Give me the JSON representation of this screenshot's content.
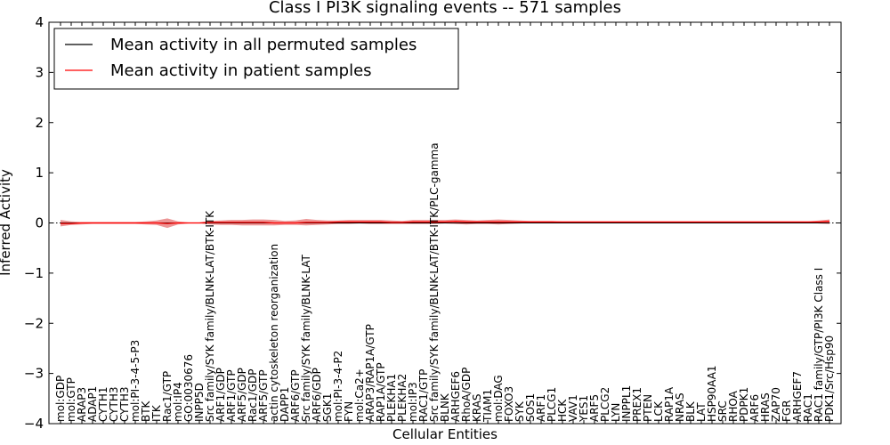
{
  "chart_data": {
    "type": "line",
    "title": "Class I PI3K signaling events -- 571 samples",
    "xlabel": "Cellular Entities",
    "ylabel": "Inferred Activity",
    "ylim": [
      -4,
      4
    ],
    "yticks": [
      4,
      3,
      2,
      1,
      0,
      -1,
      -2,
      -3,
      -4
    ],
    "ytick_labels": [
      "4",
      "3",
      "2",
      "1",
      "0",
      "−1",
      "−2",
      "−3",
      "−4"
    ],
    "grid": false,
    "legend_placement": "top-left",
    "categories": [
      "mol:GDP",
      "mol:GTP",
      "ARAP3",
      "ADAP1",
      "CYTH1",
      "CYTH3",
      "CYTH3",
      "mol:PI-3-4-5-P3",
      "BTK",
      "ITK",
      "Rac1/GTP",
      "mol:IP4",
      "GO:0030676",
      "INPP5D",
      "Src family/SYK family/BLNK-LAT/BTK-ITK",
      "ARF1/GDP",
      "ARF1/GTP",
      "ARF5/GDP",
      "Rac1/GDP",
      "ARF5/GTP",
      "actin cytoskeleton reorganization",
      "DAPP1",
      "ARF6/GTP",
      "Src family/SYK family/BLNK-LAT",
      "ARF6/GDP",
      "SGK1",
      "mol:PI-3-4-P2",
      "FYN",
      "mol:Ca2+",
      "ARAP3/RAP1A/GTP",
      "RAP1A/GTP",
      "PLEKHA1",
      "PLEKHA2",
      "mol:IP3",
      "RAC1/GTP",
      "Src family/SYK family/BLNK-LAT/BTK-ITK/PLC-gamma",
      "BLNK",
      "ARHGEF6",
      "RhoA/GDP",
      "KRAS",
      "TIAM1",
      "mol:DAG",
      "FOXO3",
      "SYK",
      "SOS1",
      "ARF1",
      "PLCG1",
      "HCK",
      "VAV1",
      "YES1",
      "ARF5",
      "PLCG2",
      "LYN",
      "INPPL1",
      "PREX1",
      "PTEN",
      "LCK",
      "RAP1A",
      "NRAS",
      "BLK",
      "LAT",
      "HSP90AA1",
      "SRC",
      "RHOA",
      "PDPK1",
      "ARF6",
      "HRAS",
      "ZAP70",
      "FGR",
      "ARHGEF7",
      "RAC1",
      "RAC1 family/GTP/PI3K Class I",
      "PDK1/Src/Hsp90"
    ],
    "series": [
      {
        "name": "Mean activity in all permuted samples",
        "color": "#000000",
        "values": [
          0,
          0,
          0,
          0,
          0,
          0,
          0,
          0,
          0,
          0,
          0,
          0,
          0,
          0,
          0,
          0,
          0,
          0,
          0,
          0,
          0,
          0,
          0,
          0,
          0,
          0,
          0,
          0,
          0,
          0,
          0,
          0,
          0,
          0,
          0,
          0,
          0,
          0,
          0,
          0,
          0,
          0,
          0,
          0,
          0,
          0,
          0,
          0,
          0,
          0,
          0,
          0,
          0,
          0,
          0,
          0,
          0,
          0,
          0,
          0,
          0,
          0,
          0,
          0,
          0,
          0,
          0,
          0,
          0,
          0,
          0,
          0,
          0
        ]
      },
      {
        "name": "Mean activity in patient samples",
        "color": "#ff0000",
        "values": [
          -0.01,
          -0.01,
          0,
          0,
          0,
          0,
          0,
          0,
          0,
          0,
          -0.01,
          0,
          0,
          0,
          0.01,
          0.01,
          0.01,
          0.01,
          0.01,
          0.01,
          0,
          0,
          0,
          0.01,
          0.01,
          0.01,
          0.02,
          0.02,
          0.02,
          0.02,
          0.02,
          0.01,
          0.01,
          0.02,
          0.02,
          0.02,
          0.02,
          0.03,
          0.02,
          0.02,
          0.02,
          0.02,
          0.02,
          0.02,
          0.02,
          0.02,
          0.02,
          0.02,
          0.02,
          0.02,
          0.02,
          0.02,
          0.02,
          0.02,
          0.02,
          0.02,
          0.02,
          0.02,
          0.02,
          0.02,
          0.02,
          0.02,
          0.02,
          0.02,
          0.02,
          0.02,
          0.02,
          0.02,
          0.02,
          0.02,
          0.02,
          0.02,
          0.03
        ]
      }
    ],
    "band": {
      "color": "#e57373",
      "upper": [
        0.06,
        0.03,
        0.02,
        0.02,
        0.02,
        0.02,
        0.02,
        0.02,
        0.03,
        0.05,
        0.09,
        0.03,
        0.01,
        0.01,
        0.04,
        0.05,
        0.06,
        0.06,
        0.07,
        0.07,
        0.06,
        0.04,
        0.05,
        0.08,
        0.06,
        0.05,
        0.05,
        0.06,
        0.06,
        0.06,
        0.06,
        0.05,
        0.04,
        0.06,
        0.06,
        0.06,
        0.06,
        0.07,
        0.06,
        0.05,
        0.06,
        0.07,
        0.06,
        0.05,
        0.04,
        0.04,
        0.04,
        0.03,
        0.03,
        0.03,
        0.03,
        0.03,
        0.03,
        0.03,
        0.03,
        0.03,
        0.03,
        0.03,
        0.03,
        0.03,
        0.03,
        0.03,
        0.03,
        0.03,
        0.03,
        0.03,
        0.03,
        0.03,
        0.03,
        0.03,
        0.03,
        0.05,
        0.07
      ],
      "lower": [
        -0.07,
        -0.04,
        -0.03,
        -0.02,
        -0.02,
        -0.02,
        -0.02,
        -0.02,
        -0.03,
        -0.04,
        -0.1,
        -0.03,
        -0.01,
        -0.01,
        -0.03,
        -0.04,
        -0.04,
        -0.05,
        -0.05,
        -0.05,
        -0.05,
        -0.04,
        -0.04,
        -0.05,
        -0.04,
        -0.03,
        -0.02,
        -0.02,
        -0.01,
        -0.02,
        -0.02,
        -0.02,
        -0.02,
        -0.02,
        -0.02,
        -0.02,
        -0.01,
        -0.02,
        -0.03,
        -0.02,
        -0.02,
        -0.03,
        -0.02,
        -0.01,
        0,
        0,
        0,
        0.01,
        0.01,
        0.01,
        0.01,
        0.01,
        0.01,
        0.01,
        0.01,
        0.01,
        0.01,
        0.01,
        0.01,
        0.01,
        0.01,
        0.01,
        0.01,
        0.01,
        0.01,
        0.01,
        0.01,
        0.01,
        0.01,
        0.01,
        0.01,
        -0.01,
        -0.02
      ]
    }
  }
}
